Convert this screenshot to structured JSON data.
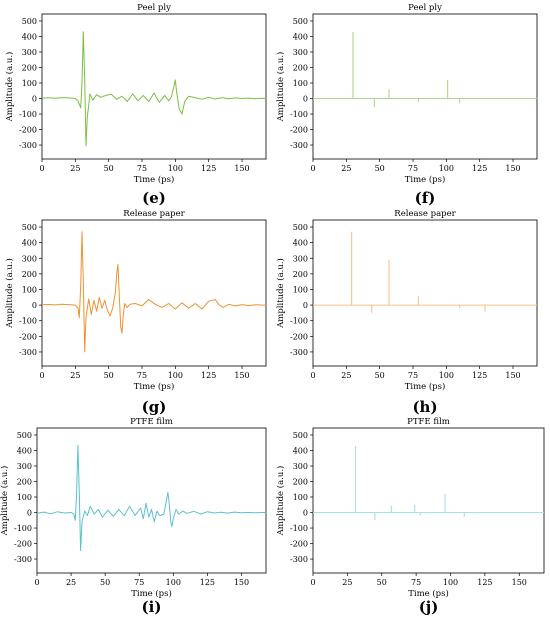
{
  "chart_data": [
    {
      "panel": "(e)",
      "type": "line",
      "title": "Peel ply",
      "xlabel": "Time (ps)",
      "ylabel": "Amplitude (a.u.)",
      "xlim": [
        0,
        168
      ],
      "ylim": [
        -390,
        545
      ],
      "xticks": [
        0,
        25,
        50,
        75,
        100,
        125,
        150
      ],
      "yticks": [
        -300,
        -200,
        -100,
        0,
        100,
        200,
        300,
        400,
        500
      ],
      "color": "#7ac142",
      "style": "waveform",
      "grid": false,
      "x": [
        0,
        5,
        10,
        15,
        20,
        25,
        27,
        29,
        30,
        31,
        32,
        33,
        34,
        36,
        38,
        41,
        44,
        48,
        52,
        56,
        60,
        64,
        68,
        72,
        76,
        80,
        84,
        88,
        92,
        95,
        97,
        99,
        100,
        101,
        103,
        105,
        107,
        110,
        115,
        120,
        125,
        130,
        135,
        140,
        145,
        150,
        155,
        160,
        165,
        168
      ],
      "y": [
        3,
        5,
        2,
        6,
        4,
        0,
        -15,
        -60,
        100,
        430,
        120,
        -305,
        -120,
        30,
        -10,
        25,
        8,
        20,
        28,
        -5,
        15,
        -20,
        30,
        -15,
        20,
        -20,
        35,
        -25,
        20,
        -15,
        10,
        80,
        120,
        40,
        -70,
        -100,
        -20,
        15,
        5,
        -5,
        8,
        -3,
        5,
        -2,
        4,
        0,
        3,
        -2,
        2,
        0
      ]
    },
    {
      "panel": "(f)",
      "type": "line",
      "title": "Peel ply",
      "xlabel": "Time (ps)",
      "ylabel": "Amplitude (a.u.)",
      "xlim": [
        0,
        168
      ],
      "ylim": [
        -390,
        545
      ],
      "xticks": [
        0,
        25,
        50,
        75,
        100,
        125,
        150
      ],
      "yticks": [
        -300,
        -200,
        -100,
        0,
        100,
        200,
        300,
        400,
        500
      ],
      "color": "#a9d98a",
      "style": "impulses",
      "grid": false,
      "x": [
        30,
        46,
        57,
        79,
        101,
        110
      ],
      "y": [
        430,
        -55,
        60,
        -20,
        120,
        -30
      ]
    },
    {
      "panel": "(g)",
      "type": "line",
      "title": "Release paper",
      "xlabel": "Time (ps)",
      "ylabel": "Amplitude (a.u.)",
      "xlim": [
        0,
        168
      ],
      "ylim": [
        -390,
        545
      ],
      "xticks": [
        0,
        25,
        50,
        75,
        100,
        125,
        150
      ],
      "yticks": [
        -300,
        -200,
        -100,
        0,
        100,
        200,
        300,
        400,
        500
      ],
      "color": "#f0922e",
      "style": "waveform",
      "grid": false,
      "x": [
        0,
        5,
        10,
        15,
        20,
        25,
        27,
        28,
        29,
        30,
        31,
        32,
        33,
        35,
        37,
        39,
        41,
        43,
        45,
        47,
        49,
        51,
        53,
        55,
        56,
        57,
        58,
        59,
        60,
        61,
        62,
        64,
        66,
        70,
        75,
        80,
        85,
        90,
        95,
        100,
        105,
        110,
        115,
        120,
        125,
        130,
        133,
        136,
        140,
        145,
        150,
        155,
        160,
        165,
        168
      ],
      "y": [
        2,
        4,
        1,
        5,
        3,
        0,
        -20,
        -80,
        120,
        470,
        150,
        -300,
        -80,
        40,
        -60,
        30,
        -40,
        50,
        -20,
        30,
        -30,
        -70,
        -20,
        80,
        200,
        260,
        60,
        -140,
        -180,
        -60,
        10,
        -15,
        5,
        10,
        -5,
        35,
        5,
        -15,
        10,
        -25,
        15,
        -20,
        10,
        -25,
        25,
        35,
        0,
        -15,
        5,
        -5,
        3,
        -3,
        2,
        0,
        0
      ]
    },
    {
      "panel": "(h)",
      "type": "line",
      "title": "Release paper",
      "xlabel": "Time (ps)",
      "ylabel": "Amplitude (a.u.)",
      "xlim": [
        0,
        168
      ],
      "ylim": [
        -390,
        545
      ],
      "xticks": [
        0,
        25,
        50,
        75,
        100,
        125,
        150
      ],
      "yticks": [
        -300,
        -200,
        -100,
        0,
        100,
        200,
        300,
        400,
        500
      ],
      "color": "#f7c08a",
      "style": "impulses",
      "grid": false,
      "x": [
        29,
        44,
        57,
        79,
        110,
        129
      ],
      "y": [
        470,
        -50,
        290,
        60,
        -20,
        -40
      ]
    },
    {
      "panel": "(i)",
      "type": "line",
      "title": "PTFE film",
      "xlabel": "Time (ps)",
      "ylabel": "Amplitude (a.u.)",
      "xlim": [
        0,
        168
      ],
      "ylim": [
        -390,
        545
      ],
      "xticks": [
        0,
        25,
        50,
        75,
        100,
        125,
        150
      ],
      "yticks": [
        -300,
        -200,
        -100,
        0,
        100,
        200,
        300,
        400,
        500
      ],
      "color": "#5bc0cf",
      "style": "waveform",
      "grid": false,
      "x": [
        0,
        5,
        10,
        15,
        20,
        25,
        27,
        28,
        29,
        30,
        31,
        32,
        33,
        35,
        37,
        39,
        42,
        45,
        48,
        52,
        56,
        60,
        64,
        68,
        72,
        76,
        78,
        80,
        82,
        84,
        86,
        88,
        90,
        93,
        95,
        96,
        97,
        98,
        99,
        100,
        102,
        104,
        107,
        110,
        115,
        120,
        125,
        130,
        135,
        140,
        145,
        150,
        155,
        160,
        165,
        168
      ],
      "y": [
        -5,
        3,
        -8,
        5,
        -3,
        0,
        -10,
        -50,
        100,
        435,
        120,
        -245,
        -60,
        10,
        -20,
        40,
        -10,
        20,
        -30,
        15,
        -25,
        20,
        -20,
        40,
        -20,
        30,
        -40,
        60,
        -30,
        20,
        -60,
        10,
        -20,
        -10,
        80,
        130,
        60,
        -50,
        -90,
        -40,
        20,
        -10,
        10,
        -5,
        8,
        -10,
        5,
        -3,
        2,
        -4,
        3,
        -2,
        1,
        -1,
        0,
        0
      ]
    },
    {
      "panel": "(j)",
      "type": "line",
      "title": "PTFE film",
      "xlabel": "Time (ps)",
      "ylabel": "Amplitude (a.u.)",
      "xlim": [
        0,
        168
      ],
      "ylim": [
        -390,
        545
      ],
      "xticks": [
        0,
        25,
        50,
        75,
        100,
        125,
        150
      ],
      "yticks": [
        -300,
        -200,
        -100,
        0,
        100,
        200,
        300,
        400,
        500
      ],
      "color": "#a6e0e8",
      "style": "impulses",
      "grid": false,
      "x": [
        31,
        45,
        57,
        74,
        78,
        96,
        110
      ],
      "y": [
        430,
        -50,
        45,
        50,
        -20,
        120,
        -30
      ]
    }
  ]
}
